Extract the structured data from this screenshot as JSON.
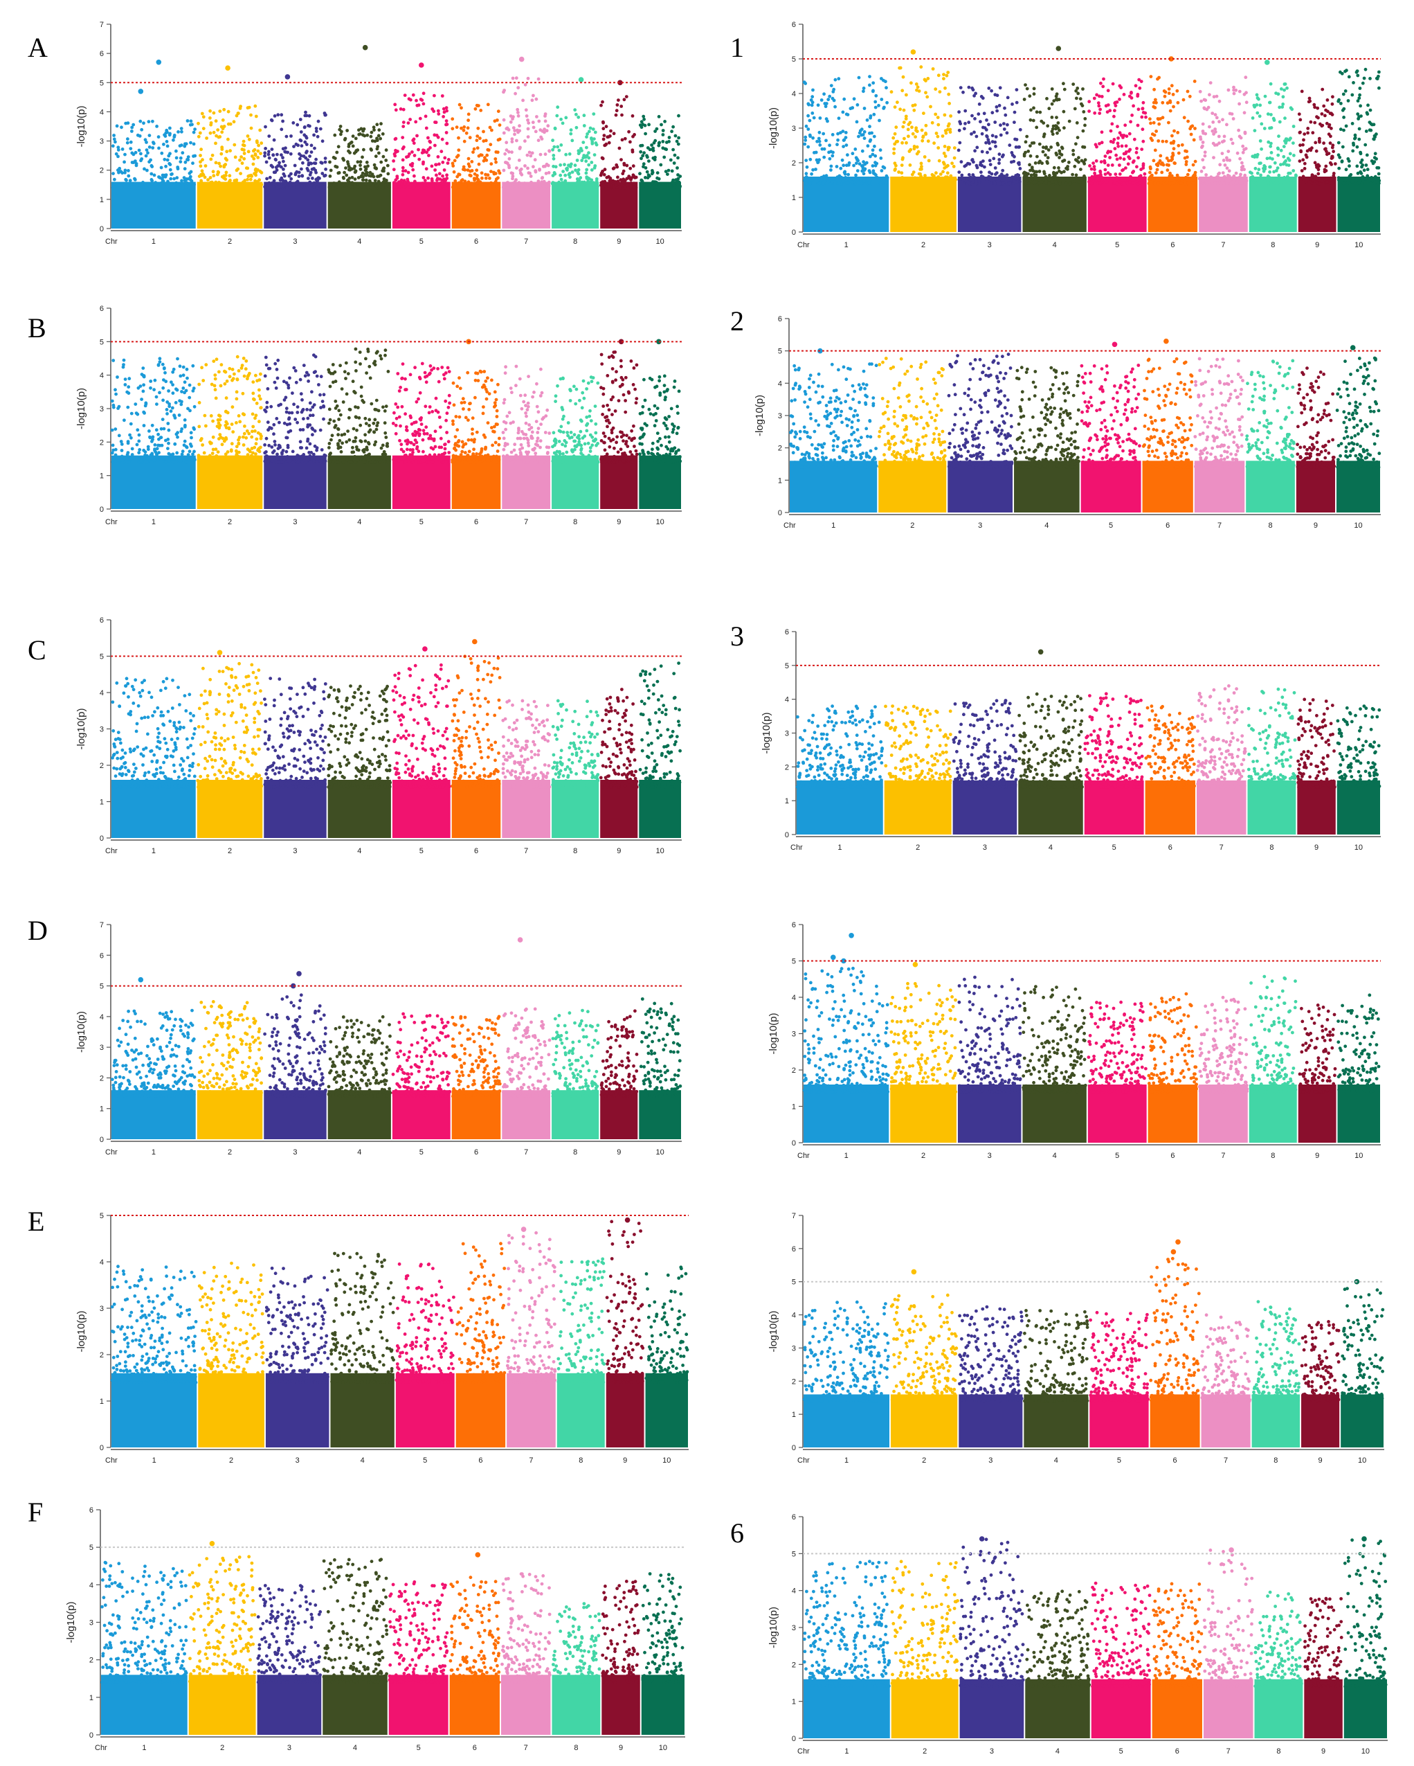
{
  "figure": {
    "chromosome_colors": [
      "#1b9ad8",
      "#fcc000",
      "#3f3691",
      "#3f4e23",
      "#f1136f",
      "#fd6f06",
      "#ec8fc3",
      "#42d6a6",
      "#8a0f2d",
      "#087052"
    ],
    "threshold_color_red": "#d81b1b",
    "threshold_color_grey": "#c8c8c8"
  },
  "chart_data": [
    {
      "id": "A",
      "label": "A",
      "type": "scatter",
      "title": "",
      "xlabel": "Chr",
      "ylabel": "-log10(p)",
      "ylim": [
        0,
        7
      ],
      "yticks": [
        "0",
        "1",
        "2",
        "3",
        "4",
        "5",
        "6",
        "7"
      ],
      "categories": [
        "1",
        "2",
        "3",
        "4",
        "5",
        "6",
        "7",
        "8",
        "9",
        "10"
      ],
      "threshold": 5,
      "threshold_style": "red",
      "baseline_max": [
        3.7,
        4.2,
        4.0,
        3.6,
        4.7,
        4.3,
        5.2,
        4.2,
        4.6,
        3.9
      ],
      "top_hits": [
        {
          "chr": "1",
          "y": 4.7
        },
        {
          "chr": "1",
          "y": 5.7
        },
        {
          "chr": "2",
          "y": 5.5
        },
        {
          "chr": "3",
          "y": 5.2
        },
        {
          "chr": "4",
          "y": 6.2
        },
        {
          "chr": "5",
          "y": 5.6
        },
        {
          "chr": "7",
          "y": 5.8
        },
        {
          "chr": "8",
          "y": 5.1
        },
        {
          "chr": "9",
          "y": 5.0
        }
      ]
    },
    {
      "id": "1",
      "label": "1",
      "type": "scatter",
      "title": "",
      "xlabel": "Chr",
      "ylabel": "-log10(p)",
      "ylim": [
        0,
        6
      ],
      "yticks": [
        "0",
        "1",
        "2",
        "3",
        "4",
        "5",
        "6"
      ],
      "categories": [
        "1",
        "2",
        "3",
        "4",
        "5",
        "6",
        "7",
        "8",
        "9",
        "10"
      ],
      "threshold": 5,
      "threshold_style": "red",
      "baseline_max": [
        4.5,
        4.8,
        4.2,
        4.3,
        4.5,
        4.5,
        4.5,
        4.3,
        4.2,
        4.8
      ],
      "top_hits": [
        {
          "chr": "2",
          "y": 5.2
        },
        {
          "chr": "4",
          "y": 5.3
        },
        {
          "chr": "6",
          "y": 5.0
        },
        {
          "chr": "8",
          "y": 4.9
        }
      ]
    },
    {
      "id": "B",
      "label": "B",
      "type": "scatter",
      "title": "",
      "xlabel": "Chr",
      "ylabel": "-log10(p)",
      "ylim": [
        0,
        6
      ],
      "yticks": [
        "0",
        "1",
        "2",
        "3",
        "4",
        "5",
        "6"
      ],
      "categories": [
        "1",
        "2",
        "3",
        "4",
        "5",
        "6",
        "7",
        "8",
        "9",
        "10"
      ],
      "threshold": 5,
      "threshold_style": "red",
      "baseline_max": [
        4.5,
        4.6,
        4.6,
        4.8,
        4.4,
        4.2,
        4.3,
        4.0,
        4.7,
        4.0
      ],
      "top_hits": [
        {
          "chr": "6",
          "y": 5.0
        },
        {
          "chr": "9",
          "y": 5.0
        },
        {
          "chr": "10",
          "y": 5.0
        }
      ]
    },
    {
      "id": "2",
      "label": "2",
      "type": "scatter",
      "title": "",
      "xlabel": "Chr",
      "ylabel": "-log10(p)",
      "ylim": [
        0,
        6
      ],
      "yticks": [
        "0",
        "1",
        "2",
        "3",
        "4",
        "5",
        "6"
      ],
      "categories": [
        "1",
        "2",
        "3",
        "4",
        "5",
        "6",
        "7",
        "8",
        "9",
        "10"
      ],
      "threshold": 5,
      "threshold_style": "red",
      "baseline_max": [
        4.6,
        4.8,
        4.9,
        4.5,
        4.6,
        4.8,
        4.8,
        4.7,
        4.5,
        4.8
      ],
      "top_hits": [
        {
          "chr": "1",
          "y": 5.0
        },
        {
          "chr": "5",
          "y": 5.2
        },
        {
          "chr": "6",
          "y": 5.3
        },
        {
          "chr": "10",
          "y": 5.1
        }
      ]
    },
    {
      "id": "C",
      "label": "C",
      "type": "scatter",
      "title": "",
      "xlabel": "Chr",
      "ylabel": "-log10(p)",
      "ylim": [
        0,
        6
      ],
      "yticks": [
        "0",
        "1",
        "2",
        "3",
        "4",
        "5",
        "6"
      ],
      "categories": [
        "1",
        "2",
        "3",
        "4",
        "5",
        "6",
        "7",
        "8",
        "9",
        "10"
      ],
      "threshold": 5,
      "threshold_style": "red",
      "baseline_max": [
        4.4,
        4.8,
        4.4,
        4.2,
        4.8,
        5.0,
        3.8,
        3.8,
        4.1,
        4.9
      ],
      "top_hits": [
        {
          "chr": "2",
          "y": 5.1
        },
        {
          "chr": "5",
          "y": 5.2
        },
        {
          "chr": "6",
          "y": 5.4
        }
      ]
    },
    {
      "id": "3",
      "label": "3",
      "type": "scatter",
      "title": "",
      "xlabel": "Chr",
      "ylabel": "-log10(p)",
      "ylim": [
        0,
        6
      ],
      "yticks": [
        "0",
        "1",
        "2",
        "3",
        "4",
        "5",
        "6"
      ],
      "categories": [
        "1",
        "2",
        "3",
        "4",
        "5",
        "6",
        "7",
        "8",
        "9",
        "10"
      ],
      "threshold": 5,
      "threshold_style": "red",
      "baseline_max": [
        3.8,
        3.8,
        4.0,
        4.2,
        4.2,
        3.8,
        4.4,
        4.3,
        4.0,
        3.8
      ],
      "top_hits": [
        {
          "chr": "4",
          "y": 5.4
        }
      ]
    },
    {
      "id": "D",
      "label": "D",
      "type": "scatter",
      "title": "",
      "xlabel": "Chr",
      "ylabel": "-log10(p)",
      "ylim": [
        0,
        7
      ],
      "yticks": [
        "0",
        "1",
        "2",
        "3",
        "4",
        "5",
        "6",
        "7"
      ],
      "categories": [
        "1",
        "2",
        "3",
        "4",
        "5",
        "6",
        "7",
        "8",
        "9",
        "10"
      ],
      "threshold": 5,
      "threshold_style": "red",
      "baseline_max": [
        4.2,
        4.5,
        4.8,
        4.0,
        4.1,
        4.0,
        4.3,
        4.2,
        4.3,
        4.6
      ],
      "top_hits": [
        {
          "chr": "1",
          "y": 5.2
        },
        {
          "chr": "3",
          "y": 5.4
        },
        {
          "chr": "3",
          "y": 5.0
        },
        {
          "chr": "7",
          "y": 6.5
        }
      ]
    },
    {
      "id": "D2",
      "label": "",
      "type": "scatter",
      "title": "",
      "xlabel": "Chr",
      "ylabel": "-log10(p)",
      "ylim": [
        0,
        6
      ],
      "yticks": [
        "0",
        "1",
        "2",
        "3",
        "4",
        "5",
        "6"
      ],
      "categories": [
        "1",
        "2",
        "3",
        "4",
        "5",
        "6",
        "7",
        "8",
        "9",
        "10"
      ],
      "threshold": 5,
      "threshold_style": "red",
      "baseline_max": [
        4.8,
        4.4,
        4.6,
        4.3,
        3.9,
        4.1,
        4.0,
        4.6,
        3.8,
        4.1
      ],
      "top_hits": [
        {
          "chr": "1",
          "y": 5.1
        },
        {
          "chr": "1",
          "y": 5.7
        },
        {
          "chr": "1",
          "y": 5.0
        },
        {
          "chr": "2",
          "y": 4.9
        }
      ]
    },
    {
      "id": "E",
      "label": "E",
      "type": "scatter",
      "title": "",
      "xlabel": "Chr",
      "ylabel": "-log10(p)",
      "ylim": [
        0,
        5
      ],
      "yticks": [
        "0",
        "1",
        "2",
        "3",
        "4",
        "5"
      ],
      "categories": [
        "1",
        "2",
        "3",
        "4",
        "5",
        "6",
        "7",
        "8",
        "9",
        "10"
      ],
      "threshold": 5,
      "threshold_style": "red",
      "baseline_max": [
        3.9,
        4.0,
        3.9,
        4.2,
        4.0,
        4.4,
        4.7,
        4.1,
        4.9,
        3.9
      ],
      "top_hits": [
        {
          "chr": "7",
          "y": 4.7
        },
        {
          "chr": "9",
          "y": 4.9
        }
      ]
    },
    {
      "id": "E2",
      "label": "",
      "type": "scatter",
      "title": "",
      "xlabel": "Chr",
      "ylabel": "-log10(p)",
      "ylim": [
        0,
        7
      ],
      "yticks": [
        "0",
        "1",
        "2",
        "3",
        "4",
        "5",
        "6",
        "7"
      ],
      "categories": [
        "1",
        "2",
        "3",
        "4",
        "5",
        "6",
        "7",
        "8",
        "9",
        "10"
      ],
      "threshold": 5,
      "threshold_style": "grey",
      "baseline_max": [
        4.4,
        4.6,
        4.3,
        4.2,
        4.1,
        5.8,
        4.0,
        4.4,
        3.9,
        4.9
      ],
      "top_hits": [
        {
          "chr": "2",
          "y": 5.3
        },
        {
          "chr": "6",
          "y": 6.2
        },
        {
          "chr": "6",
          "y": 5.9
        },
        {
          "chr": "10",
          "y": 5.0
        }
      ]
    },
    {
      "id": "F",
      "label": "F",
      "type": "scatter",
      "title": "",
      "xlabel": "Chr",
      "ylabel": "-log10(p)",
      "ylim": [
        0,
        6
      ],
      "yticks": [
        "0",
        "1",
        "2",
        "3",
        "4",
        "5",
        "6"
      ],
      "categories": [
        "1",
        "2",
        "3",
        "4",
        "5",
        "6",
        "7",
        "8",
        "9",
        "10"
      ],
      "threshold": 5,
      "threshold_style": "grey",
      "baseline_max": [
        4.7,
        4.8,
        4.0,
        4.7,
        4.1,
        4.2,
        4.3,
        3.6,
        4.1,
        4.3
      ],
      "top_hits": [
        {
          "chr": "2",
          "y": 5.1
        },
        {
          "chr": "6",
          "y": 4.8
        }
      ]
    },
    {
      "id": "6",
      "label": "6",
      "type": "scatter",
      "title": "",
      "xlabel": "Chr",
      "ylabel": "-log10(p)",
      "ylim": [
        0,
        6
      ],
      "yticks": [
        "0",
        "1",
        "2",
        "3",
        "4",
        "5",
        "6"
      ],
      "categories": [
        "1",
        "2",
        "3",
        "4",
        "5",
        "6",
        "7",
        "8",
        "9",
        "10"
      ],
      "threshold": 5,
      "threshold_style": "grey",
      "baseline_max": [
        4.8,
        4.8,
        5.4,
        4.0,
        4.2,
        4.2,
        5.1,
        4.0,
        3.9,
        5.4
      ],
      "top_hits": [
        {
          "chr": "3",
          "y": 5.4
        },
        {
          "chr": "7",
          "y": 5.1
        },
        {
          "chr": "10",
          "y": 5.4
        }
      ]
    }
  ]
}
